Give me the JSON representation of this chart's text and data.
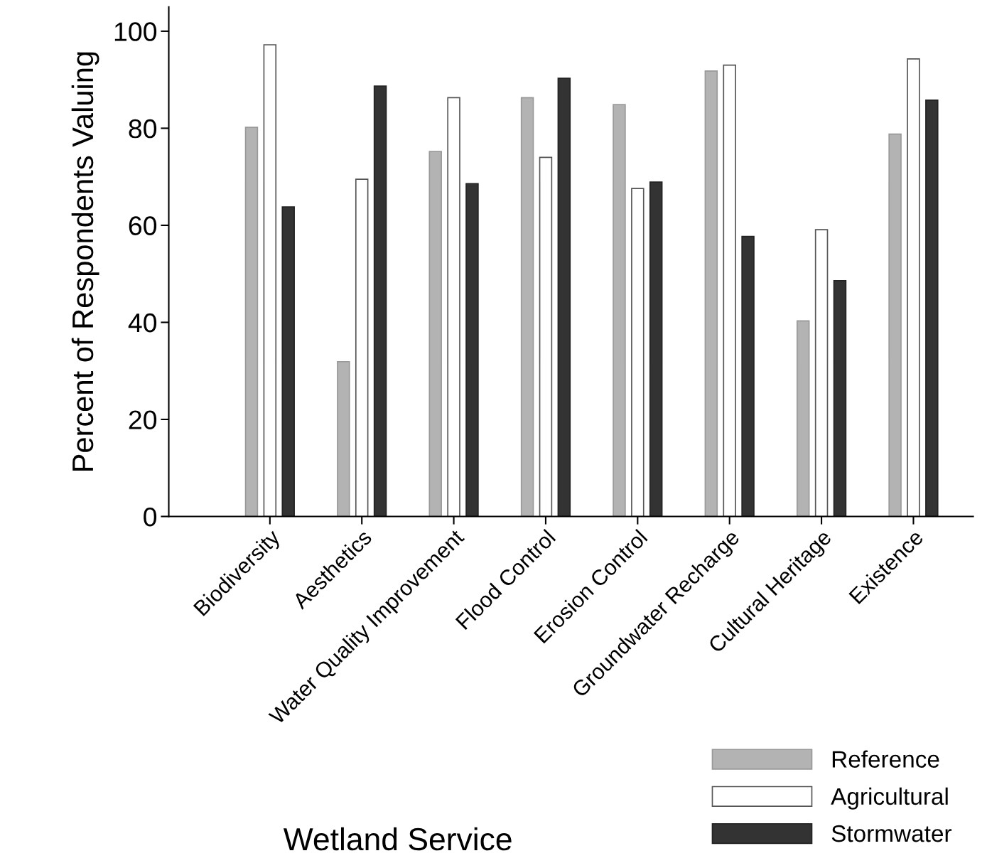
{
  "chart_data": {
    "type": "bar",
    "xlabel": "Wetland Service",
    "ylabel": "Percent of Respondents Valuing",
    "categories": [
      "Biodiversity",
      "Aesthetics",
      "Water Quality Improvement",
      "Flood Control",
      "Erosion Control",
      "Groundwater Recharge",
      "Cultural Heritage",
      "Existence"
    ],
    "series": [
      {
        "name": "Reference",
        "color": "#b3b3b3",
        "values": [
          80.2,
          31.9,
          75.2,
          86.3,
          84.9,
          91.8,
          40.3,
          78.8
        ]
      },
      {
        "name": "Agricultural",
        "color": "#ffffff",
        "values": [
          97.2,
          69.5,
          86.3,
          74.0,
          67.6,
          93.0,
          59.1,
          94.3
        ]
      },
      {
        "name": "Stormwater",
        "color": "#333333",
        "values": [
          63.8,
          88.7,
          68.6,
          90.3,
          68.9,
          57.7,
          48.6,
          85.8
        ]
      }
    ],
    "ylim": [
      0,
      105
    ],
    "yticks": [
      0,
      20,
      40,
      60,
      80,
      100
    ],
    "grid": false,
    "legend": "bottom right"
  }
}
